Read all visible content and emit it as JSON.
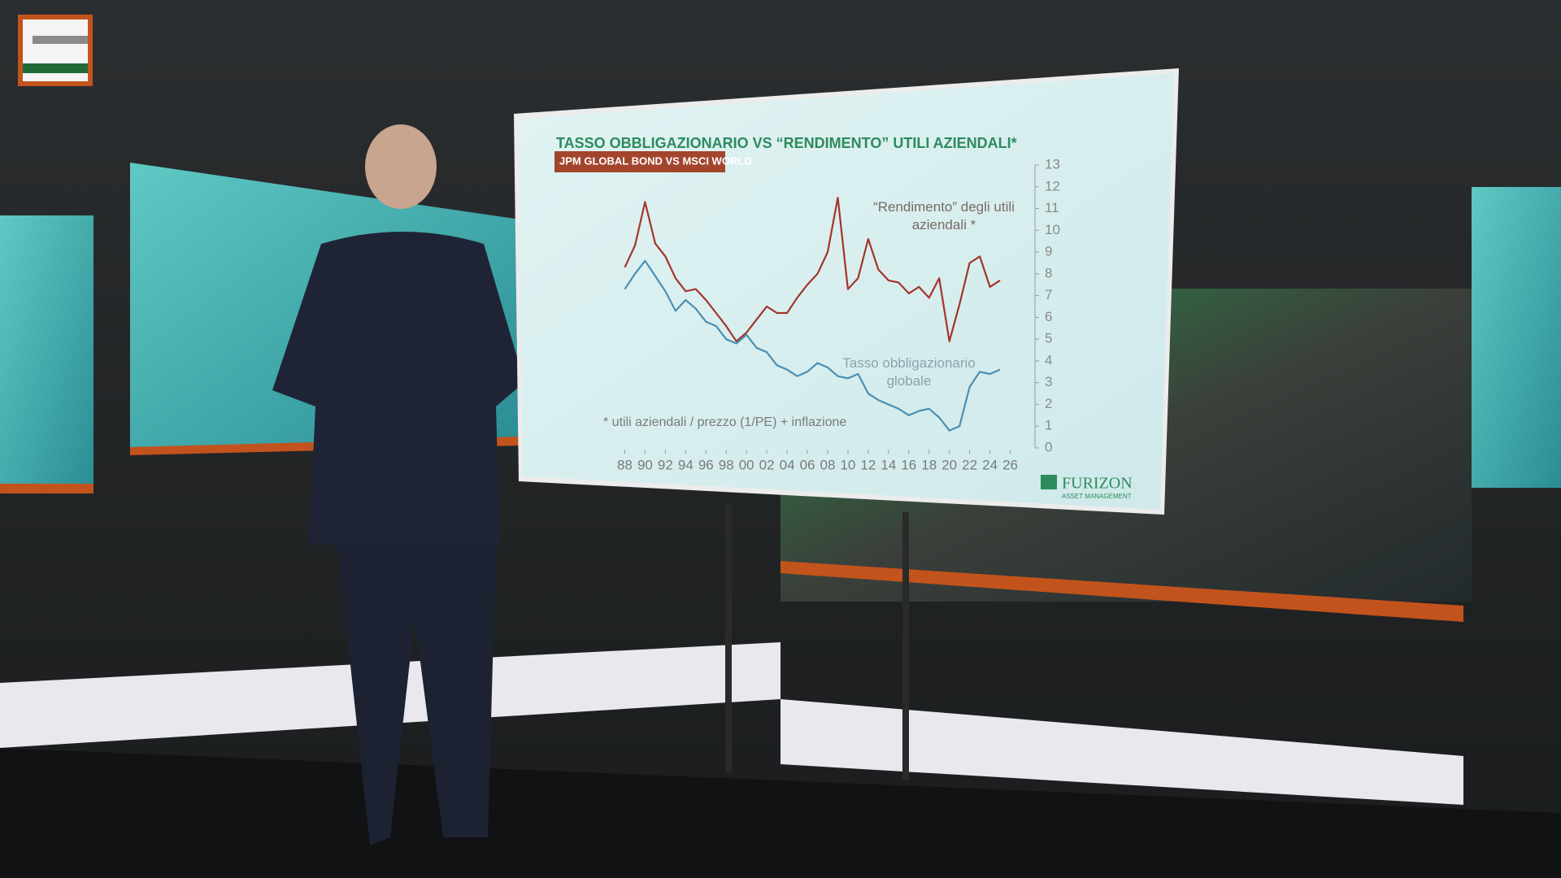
{
  "chart_data": {
    "type": "line",
    "title": "TASSO OBBLIGAZIONARIO VS “RENDIMENTO” UTILI AZIENDALI*",
    "subtitle": "JPM GLOBAL BOND VS MSCI WORLD",
    "footnote": "* utili aziendali / prezzo (1/PE) + inflazione",
    "logo": "FURIZON",
    "logo_sub": "ASSET MANAGEMENT",
    "x": [
      1988,
      1989,
      1990,
      1991,
      1992,
      1993,
      1994,
      1995,
      1996,
      1997,
      1998,
      1999,
      2000,
      2001,
      2002,
      2003,
      2004,
      2005,
      2006,
      2007,
      2008,
      2009,
      2010,
      2011,
      2012,
      2013,
      2014,
      2015,
      2016,
      2017,
      2018,
      2019,
      2020,
      2021,
      2022,
      2023,
      2024,
      2025
    ],
    "series": [
      {
        "name": "“Rendimento” degli utili aziendali *",
        "color": "#a3352b",
        "values": [
          8.3,
          9.3,
          11.3,
          9.4,
          8.8,
          7.8,
          7.2,
          7.3,
          6.8,
          6.2,
          5.6,
          4.9,
          5.3,
          5.9,
          6.5,
          6.2,
          6.2,
          6.9,
          7.5,
          8.0,
          9.0,
          11.5,
          7.3,
          7.8,
          9.6,
          8.2,
          7.7,
          7.6,
          7.1,
          7.4,
          6.9,
          7.8,
          4.9,
          6.6,
          8.5,
          8.8,
          7.4,
          7.7
        ]
      },
      {
        "name": "Tasso obbligazionario globale",
        "color": "#4b8fb3",
        "values": [
          7.3,
          8.0,
          8.6,
          7.9,
          7.2,
          6.3,
          6.8,
          6.4,
          5.8,
          5.6,
          5.0,
          4.8,
          5.2,
          4.6,
          4.4,
          3.8,
          3.6,
          3.3,
          3.5,
          3.9,
          3.7,
          3.3,
          3.2,
          3.4,
          2.5,
          2.2,
          2.0,
          1.8,
          1.5,
          1.7,
          1.8,
          1.4,
          0.8,
          1.0,
          2.8,
          3.5,
          3.4,
          3.6
        ]
      }
    ],
    "xlim": [
      1987,
      2027
    ],
    "xticks": [
      {
        "value": 1988,
        "label": "88"
      },
      {
        "value": 1990,
        "label": "90"
      },
      {
        "value": 1992,
        "label": "92"
      },
      {
        "value": 1994,
        "label": "94"
      },
      {
        "value": 1996,
        "label": "96"
      },
      {
        "value": 1998,
        "label": "98"
      },
      {
        "value": 2000,
        "label": "00"
      },
      {
        "value": 2002,
        "label": "02"
      },
      {
        "value": 2004,
        "label": "04"
      },
      {
        "value": 2006,
        "label": "06"
      },
      {
        "value": 2008,
        "label": "08"
      },
      {
        "value": 2010,
        "label": "10"
      },
      {
        "value": 2012,
        "label": "12"
      },
      {
        "value": 2014,
        "label": "14"
      },
      {
        "value": 2016,
        "label": "16"
      },
      {
        "value": 2018,
        "label": "18"
      },
      {
        "value": 2020,
        "label": "20"
      },
      {
        "value": 2022,
        "label": "22"
      },
      {
        "value": 2024,
        "label": "24"
      },
      {
        "value": 2026,
        "label": "26"
      }
    ],
    "ylim": [
      0,
      13
    ],
    "yticks": [
      0,
      1,
      2,
      3,
      4,
      5,
      6,
      7,
      8,
      9,
      10,
      11,
      12,
      13
    ]
  }
}
